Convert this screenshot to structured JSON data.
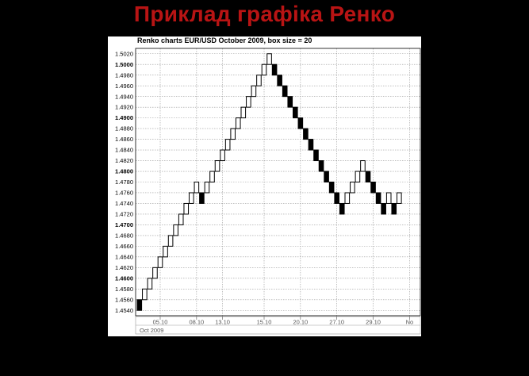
{
  "slide": {
    "title": "Приклад графіка Ренко"
  },
  "chart_data": {
    "type": "renko",
    "title": "Renko charts EUR/USD October 2009, box size = 20",
    "box_size": 20,
    "units": "pips",
    "ylim": [
      1.453,
      1.503
    ],
    "y_ticks": [
      "1.4540",
      "1.4560",
      "1.4580",
      "1.4600",
      "1.4620",
      "1.4640",
      "1.4660",
      "1.4680",
      "1.4700",
      "1.4720",
      "1.4740",
      "1.4760",
      "1.4780",
      "1.4800",
      "1.4820",
      "1.4840",
      "1.4860",
      "1.4880",
      "1.4900",
      "1.4920",
      "1.4940",
      "1.4960",
      "1.4980",
      "1.5000",
      "1.5020"
    ],
    "y_ticks_bold": [
      "1.4600",
      "1.4700",
      "1.4800",
      "1.4900",
      "1.5000"
    ],
    "x_ticks": [
      {
        "label": "05.10",
        "brick": 4
      },
      {
        "label": "08.10",
        "brick": 11
      },
      {
        "label": "13.10",
        "brick": 16
      },
      {
        "label": "15.10",
        "brick": 24
      },
      {
        "label": "20.10",
        "brick": 31
      },
      {
        "label": "27.10",
        "brick": 38
      },
      {
        "label": "29.10",
        "brick": 45
      },
      {
        "label": "No",
        "brick": 52
      }
    ],
    "x_sub_labels": [
      {
        "label": "Oct 2009",
        "brick": 0
      }
    ],
    "bricks": [
      {
        "dir": "down",
        "top": 1.456
      },
      {
        "dir": "up",
        "top": 1.458
      },
      {
        "dir": "up",
        "top": 1.46
      },
      {
        "dir": "up",
        "top": 1.462
      },
      {
        "dir": "up",
        "top": 1.464
      },
      {
        "dir": "up",
        "top": 1.466
      },
      {
        "dir": "up",
        "top": 1.468
      },
      {
        "dir": "up",
        "top": 1.47
      },
      {
        "dir": "up",
        "top": 1.472
      },
      {
        "dir": "up",
        "top": 1.474
      },
      {
        "dir": "up",
        "top": 1.476
      },
      {
        "dir": "up",
        "top": 1.478
      },
      {
        "dir": "down",
        "top": 1.476
      },
      {
        "dir": "up",
        "top": 1.478
      },
      {
        "dir": "up",
        "top": 1.48
      },
      {
        "dir": "up",
        "top": 1.482
      },
      {
        "dir": "up",
        "top": 1.484
      },
      {
        "dir": "up",
        "top": 1.486
      },
      {
        "dir": "up",
        "top": 1.488
      },
      {
        "dir": "up",
        "top": 1.49
      },
      {
        "dir": "up",
        "top": 1.492
      },
      {
        "dir": "up",
        "top": 1.494
      },
      {
        "dir": "up",
        "top": 1.496
      },
      {
        "dir": "up",
        "top": 1.498
      },
      {
        "dir": "up",
        "top": 1.5
      },
      {
        "dir": "up",
        "top": 1.502
      },
      {
        "dir": "down",
        "top": 1.5
      },
      {
        "dir": "down",
        "top": 1.498
      },
      {
        "dir": "down",
        "top": 1.496
      },
      {
        "dir": "down",
        "top": 1.494
      },
      {
        "dir": "down",
        "top": 1.492
      },
      {
        "dir": "down",
        "top": 1.49
      },
      {
        "dir": "down",
        "top": 1.488
      },
      {
        "dir": "down",
        "top": 1.486
      },
      {
        "dir": "down",
        "top": 1.484
      },
      {
        "dir": "down",
        "top": 1.482
      },
      {
        "dir": "down",
        "top": 1.48
      },
      {
        "dir": "down",
        "top": 1.478
      },
      {
        "dir": "down",
        "top": 1.476
      },
      {
        "dir": "down",
        "top": 1.474
      },
      {
        "dir": "up",
        "top": 1.476
      },
      {
        "dir": "up",
        "top": 1.478
      },
      {
        "dir": "up",
        "top": 1.48
      },
      {
        "dir": "up",
        "top": 1.482
      },
      {
        "dir": "down",
        "top": 1.48
      },
      {
        "dir": "down",
        "top": 1.478
      },
      {
        "dir": "down",
        "top": 1.476
      },
      {
        "dir": "down",
        "top": 1.474
      },
      {
        "dir": "up",
        "top": 1.476
      },
      {
        "dir": "down",
        "top": 1.474
      },
      {
        "dir": "up",
        "top": 1.476
      }
    ],
    "colors": {
      "up": "#ffffff",
      "down": "#000000",
      "grid": "#9a9a9a",
      "border": "#000000"
    }
  }
}
